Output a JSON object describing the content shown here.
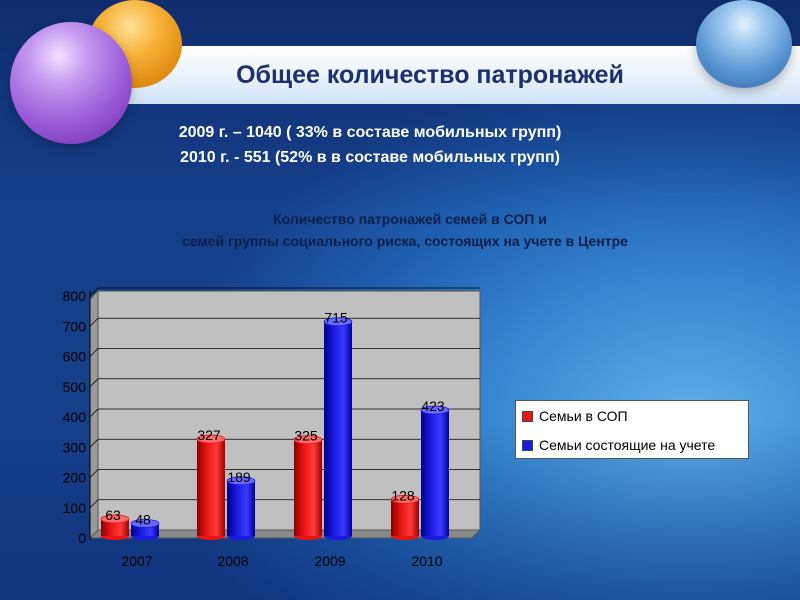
{
  "header": {
    "title": "Общее количество патронажей"
  },
  "stats": {
    "line1": "2009 г. – 1040 ( 33% в составе мобильных групп)",
    "line2": "2010 г. - 551 (52% в в составе мобильных групп)"
  },
  "chart_title": {
    "line1": "Количество патронажей семей в СОП и",
    "line2": "семей  группы социального риска, состоящих на учете в Центре"
  },
  "colors": {
    "series1": "#e81515",
    "series2": "#1a1ae0",
    "plot_bg": "#c0c0c0"
  },
  "chart_data": {
    "type": "bar",
    "style": "3d-cylinder",
    "categories": [
      "2007",
      "2008",
      "2009",
      "2010"
    ],
    "series": [
      {
        "name": "Семьи в СОП",
        "values": [
          63,
          327,
          325,
          128
        ]
      },
      {
        "name": "Семьи состоящие на учете",
        "values": [
          48,
          189,
          715,
          423
        ]
      }
    ],
    "yticks": [
      "0",
      "100",
      "200",
      "300",
      "400",
      "500",
      "600",
      "700",
      "800"
    ],
    "ylim": [
      0,
      800
    ],
    "grid": true,
    "legend_position": "right"
  }
}
